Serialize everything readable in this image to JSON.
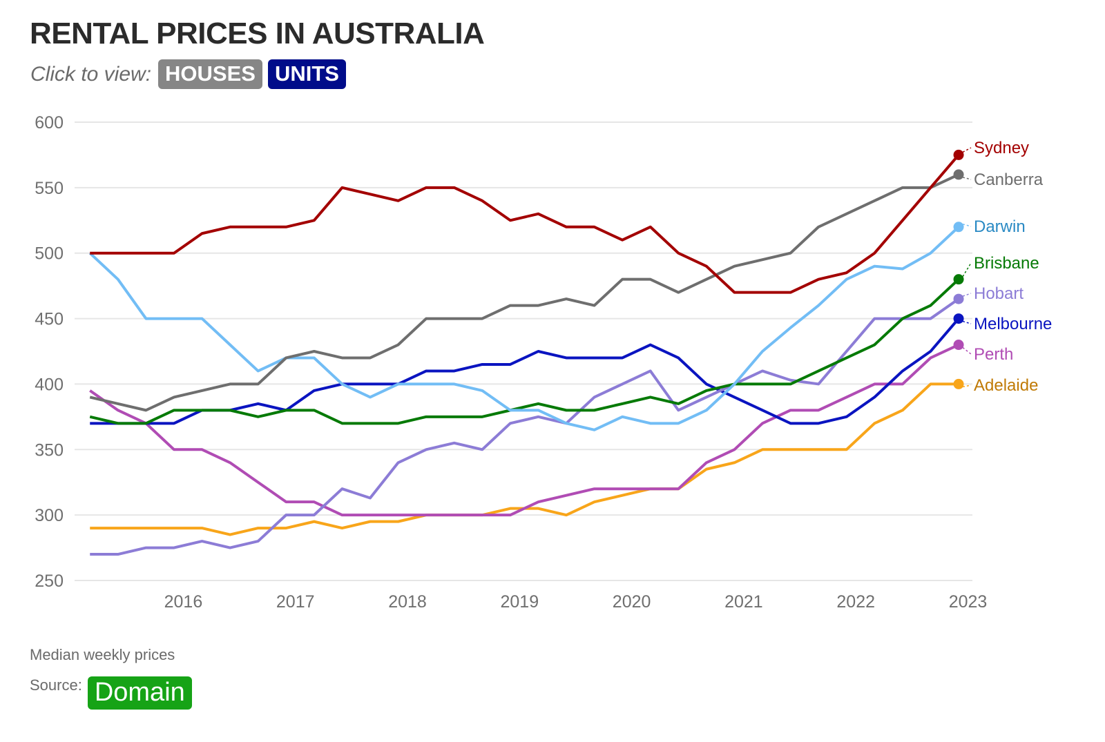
{
  "header": {
    "title": "RENTAL PRICES IN AUSTRALIA",
    "click_label": "Click to view:",
    "toggle_houses": "HOUSES",
    "toggle_units": "UNITS"
  },
  "footer": {
    "note": "Median weekly prices",
    "source_label": "Source:",
    "source_name": "Domain"
  },
  "colors": {
    "houses_button": "#868686",
    "units_button": "#000c8a",
    "source_badge": "#16a316",
    "grid": "#e6e6e6"
  },
  "chart_data": {
    "type": "line",
    "title": "RENTAL PRICES IN AUSTRALIA",
    "subtitle": "Click to view: HOUSES UNITS",
    "xlabel": "",
    "ylabel": "Median weekly prices",
    "ylim": [
      250,
      600
    ],
    "xlim": [
      2015.03,
      2023.04
    ],
    "yticks": [
      250,
      300,
      350,
      400,
      450,
      500,
      550,
      600
    ],
    "xticks": [
      2016,
      2017,
      2018,
      2019,
      2020,
      2021,
      2022,
      2023
    ],
    "grid": true,
    "legend": "right (end-of-line labels)",
    "x_start": 2015.167,
    "x_step": 0.25,
    "series": [
      {
        "name": "Sydney",
        "color": "#a30000",
        "label_color": "#a30000",
        "values": [
          500,
          500,
          500,
          500,
          515,
          520,
          520,
          520,
          525,
          550,
          545,
          540,
          550,
          550,
          540,
          525,
          530,
          520,
          520,
          510,
          520,
          500,
          490,
          470,
          470,
          470,
          480,
          485,
          500,
          525,
          550,
          575
        ]
      },
      {
        "name": "Canberra",
        "color": "#6e6e6e",
        "label_color": "#6e6e6e",
        "values": [
          390,
          385,
          380,
          390,
          395,
          400,
          400,
          420,
          425,
          420,
          420,
          430,
          450,
          450,
          450,
          460,
          460,
          465,
          460,
          480,
          480,
          470,
          480,
          490,
          495,
          500,
          520,
          530,
          540,
          550,
          550,
          560
        ]
      },
      {
        "name": "Darwin",
        "color": "#72bdf5",
        "label_color": "#2a8ac4",
        "values": [
          500,
          480,
          450,
          450,
          450,
          430,
          410,
          420,
          420,
          400,
          390,
          400,
          400,
          400,
          395,
          380,
          380,
          370,
          365,
          375,
          370,
          370,
          380,
          400,
          425,
          443,
          460,
          480,
          490,
          488,
          500,
          520
        ]
      },
      {
        "name": "Brisbane",
        "color": "#067a06",
        "label_color": "#067a06",
        "values": [
          375,
          370,
          370,
          380,
          380,
          380,
          375,
          380,
          380,
          370,
          370,
          370,
          375,
          375,
          375,
          380,
          385,
          380,
          380,
          385,
          390,
          385,
          395,
          400,
          400,
          400,
          410,
          420,
          430,
          450,
          460,
          480
        ]
      },
      {
        "name": "Hobart",
        "color": "#8c7cd6",
        "label_color": "#8c7cd6",
        "values": [
          270,
          270,
          275,
          275,
          280,
          275,
          280,
          300,
          300,
          320,
          313,
          340,
          350,
          355,
          350,
          370,
          375,
          370,
          390,
          400,
          410,
          380,
          390,
          400,
          410,
          403,
          400,
          425,
          450,
          450,
          450,
          465
        ]
      },
      {
        "name": "Melbourne",
        "color": "#0a14c0",
        "label_color": "#0a14c0",
        "values": [
          370,
          370,
          370,
          370,
          380,
          380,
          385,
          380,
          395,
          400,
          400,
          400,
          410,
          410,
          415,
          415,
          425,
          420,
          420,
          420,
          430,
          420,
          400,
          390,
          380,
          370,
          370,
          375,
          390,
          410,
          425,
          450
        ]
      },
      {
        "name": "Perth",
        "color": "#b04cb4",
        "label_color": "#b04cb4",
        "values": [
          395,
          380,
          370,
          350,
          350,
          340,
          325,
          310,
          310,
          300,
          300,
          300,
          300,
          300,
          300,
          300,
          310,
          315,
          320,
          320,
          320,
          320,
          340,
          350,
          370,
          380,
          380,
          390,
          400,
          400,
          420,
          430
        ]
      },
      {
        "name": "Adelaide",
        "color": "#f8a51a",
        "label_color": "#c07a05",
        "values": [
          290,
          290,
          290,
          290,
          290,
          285,
          290,
          290,
          295,
          290,
          295,
          295,
          300,
          300,
          300,
          305,
          305,
          300,
          310,
          315,
          320,
          320,
          335,
          340,
          350,
          350,
          350,
          350,
          370,
          380,
          400,
          400
        ]
      }
    ]
  }
}
